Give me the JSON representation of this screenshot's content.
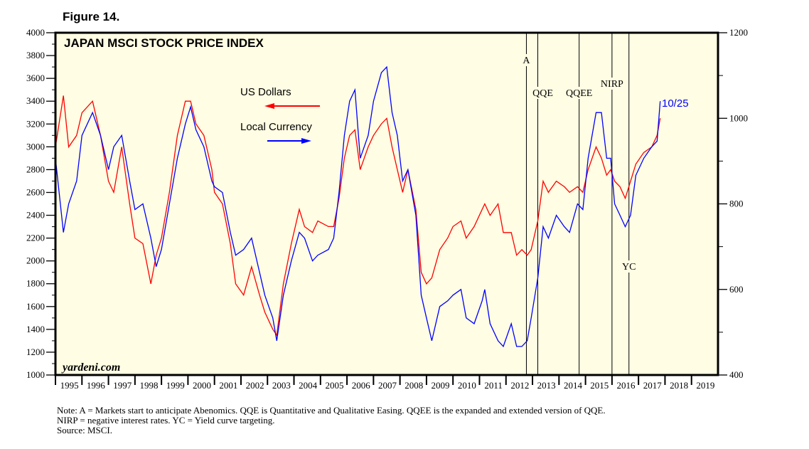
{
  "figure_label": "Figure 14.",
  "notes": [
    "Note: A = Markets start to anticipate Abenomics. QQE is Quantitative and Qualitative Easing. QQEE is the expanded and extended version of QQE.",
    "NIRP = negative interest rates. YC = Yield curve targeting.",
    "Source: MSCI."
  ],
  "chart_data": {
    "type": "line",
    "title": "JAPAN MSCI STOCK PRICE INDEX",
    "watermark": "yardeni.com",
    "x_ticks": [
      "1995",
      "1996",
      "1997",
      "1998",
      "1999",
      "2000",
      "2001",
      "2002",
      "2003",
      "2004",
      "2005",
      "2006",
      "2007",
      "2008",
      "2009",
      "2010",
      "2011",
      "2012",
      "2013",
      "2014",
      "2015",
      "2016",
      "2017",
      "2018",
      "2019"
    ],
    "xlim": [
      1995,
      2020
    ],
    "y_left": {
      "range": [
        1000,
        4000
      ],
      "ticks": [
        1000,
        1200,
        1400,
        1600,
        1800,
        2000,
        2200,
        2400,
        2600,
        2800,
        3000,
        3200,
        3400,
        3600,
        3800,
        4000
      ]
    },
    "y_right": {
      "range": [
        400,
        1200
      ],
      "ticks": [
        400,
        600,
        800,
        1000,
        1200
      ]
    },
    "legend": [
      {
        "name": "US Dollars",
        "color": "#ff0000",
        "axis": "right",
        "arrow": "left"
      },
      {
        "name": "Local Currency",
        "color": "#0000ff",
        "axis": "left",
        "arrow": "right"
      }
    ],
    "events": [
      {
        "label": "A",
        "x": 2012.77
      },
      {
        "label": "QQE",
        "x": 2013.2
      },
      {
        "label": "QQEE",
        "x": 2014.76
      },
      {
        "label": "NIRP",
        "x": 2016.0
      },
      {
        "label": "YC",
        "x": 2016.64
      }
    ],
    "last_label": "10/25",
    "x": [
      1995.0,
      1995.3,
      1995.5,
      1995.8,
      1996.0,
      1996.4,
      1996.7,
      1997.0,
      1997.2,
      1997.5,
      1997.8,
      1998.0,
      1998.3,
      1998.6,
      1998.8,
      1999.0,
      1999.3,
      1999.6,
      1999.9,
      2000.1,
      2000.3,
      2000.6,
      2000.9,
      2001.0,
      2001.3,
      2001.6,
      2001.8,
      2002.1,
      2002.4,
      2002.7,
      2002.9,
      2003.2,
      2003.35,
      2003.6,
      2003.9,
      2004.2,
      2004.4,
      2004.7,
      2004.9,
      2005.3,
      2005.5,
      2005.7,
      2005.9,
      2006.1,
      2006.3,
      2006.5,
      2006.8,
      2007.0,
      2007.3,
      2007.5,
      2007.7,
      2007.9,
      2008.1,
      2008.3,
      2008.6,
      2008.8,
      2009.0,
      2009.2,
      2009.5,
      2009.8,
      2010.0,
      2010.3,
      2010.5,
      2010.8,
      2011.1,
      2011.2,
      2011.4,
      2011.7,
      2011.9,
      2012.2,
      2012.4,
      2012.6,
      2012.8,
      2012.95,
      2013.2,
      2013.4,
      2013.6,
      2013.9,
      2014.2,
      2014.4,
      2014.7,
      2014.9,
      2015.1,
      2015.4,
      2015.6,
      2015.8,
      2015.95,
      2016.1,
      2016.3,
      2016.5,
      2016.7,
      2016.9,
      2017.2,
      2017.5,
      2017.7,
      2017.82
    ],
    "series": [
      {
        "name": "US Dollars",
        "axis": "right",
        "values": [
          933,
          1053,
          933,
          960,
          1013,
          1040,
          960,
          853,
          827,
          933,
          800,
          720,
          707,
          613,
          680,
          720,
          827,
          960,
          1040,
          1040,
          987,
          960,
          880,
          827,
          800,
          707,
          613,
          587,
          653,
          587,
          547,
          507,
          493,
          613,
          707,
          787,
          747,
          733,
          760,
          747,
          747,
          813,
          907,
          960,
          973,
          880,
          933,
          960,
          987,
          1000,
          933,
          880,
          827,
          880,
          787,
          640,
          613,
          627,
          693,
          720,
          747,
          760,
          720,
          747,
          787,
          800,
          773,
          800,
          733,
          733,
          680,
          693,
          680,
          693,
          760,
          853,
          827,
          853,
          840,
          827,
          840,
          827,
          880,
          933,
          907,
          867,
          880,
          853,
          840,
          813,
          853,
          893,
          920,
          933,
          960,
          1000
        ]
      },
      {
        "name": "Local Currency",
        "axis": "left",
        "values": [
          2900,
          2250,
          2500,
          2700,
          3100,
          3300,
          3100,
          2800,
          3000,
          3100,
          2700,
          2450,
          2500,
          2200,
          1950,
          2100,
          2500,
          2900,
          3200,
          3350,
          3150,
          3000,
          2700,
          2650,
          2600,
          2250,
          2050,
          2100,
          2200,
          1900,
          1700,
          1500,
          1300,
          1700,
          2000,
          2250,
          2200,
          2000,
          2050,
          2100,
          2200,
          2600,
          3100,
          3400,
          3500,
          2900,
          3100,
          3400,
          3650,
          3700,
          3300,
          3100,
          2700,
          2800,
          2400,
          1700,
          1500,
          1300,
          1600,
          1650,
          1700,
          1750,
          1500,
          1450,
          1650,
          1750,
          1450,
          1300,
          1250,
          1450,
          1250,
          1250,
          1300,
          1500,
          1850,
          2300,
          2200,
          2400,
          2300,
          2250,
          2500,
          2450,
          2900,
          3300,
          3300,
          2900,
          2900,
          2500,
          2400,
          2300,
          2400,
          2750,
          2900,
          3000,
          3050,
          3400
        ]
      }
    ]
  }
}
